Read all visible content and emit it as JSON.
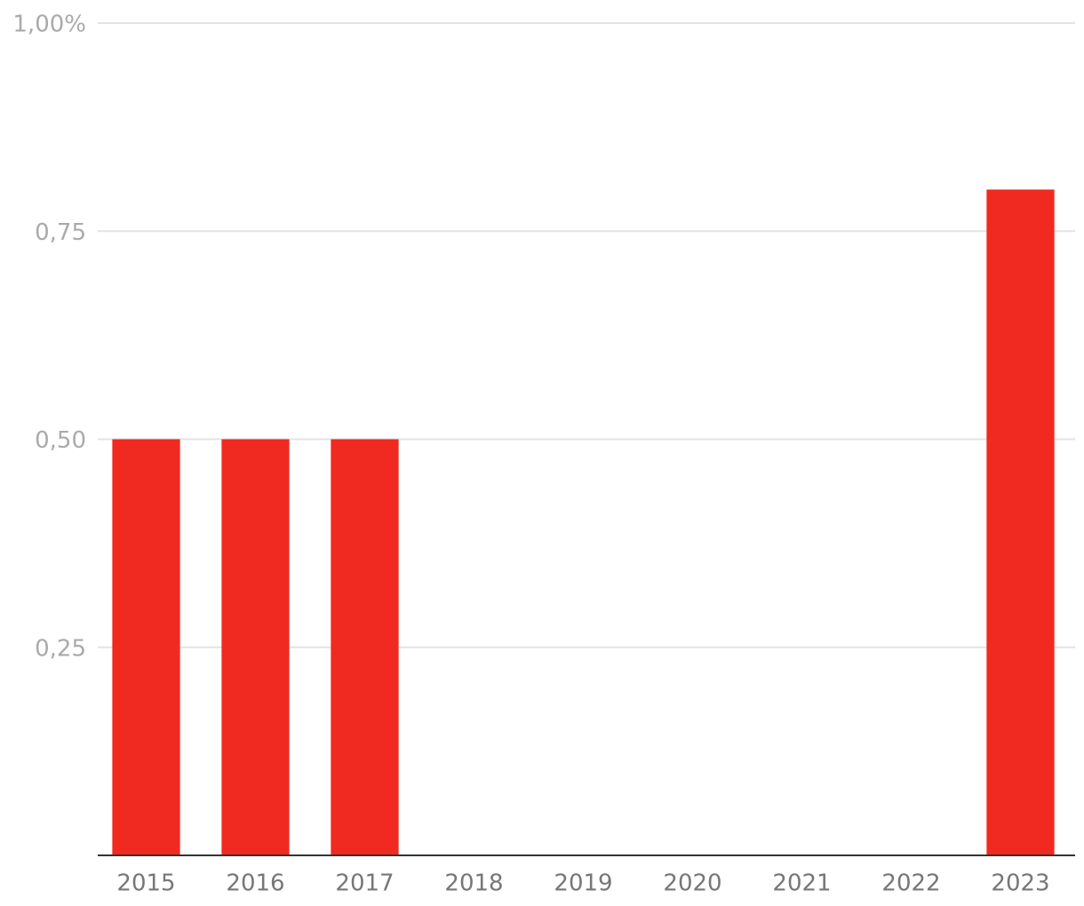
{
  "chart_data": {
    "type": "bar",
    "categories": [
      "2015",
      "2016",
      "2017",
      "2018",
      "2019",
      "2020",
      "2021",
      "2022",
      "2023"
    ],
    "values": [
      0.5,
      0.5,
      0.5,
      0,
      0,
      0,
      0,
      0,
      0.8
    ],
    "color": "#f02a20",
    "ylim": [
      0,
      1
    ],
    "yticks": [
      {
        "value": 0.25,
        "label": "0,25"
      },
      {
        "value": 0.5,
        "label": "0,50"
      },
      {
        "value": 0.75,
        "label": "0,75"
      },
      {
        "value": 1,
        "label": "1,00%"
      }
    ],
    "grid": true
  }
}
